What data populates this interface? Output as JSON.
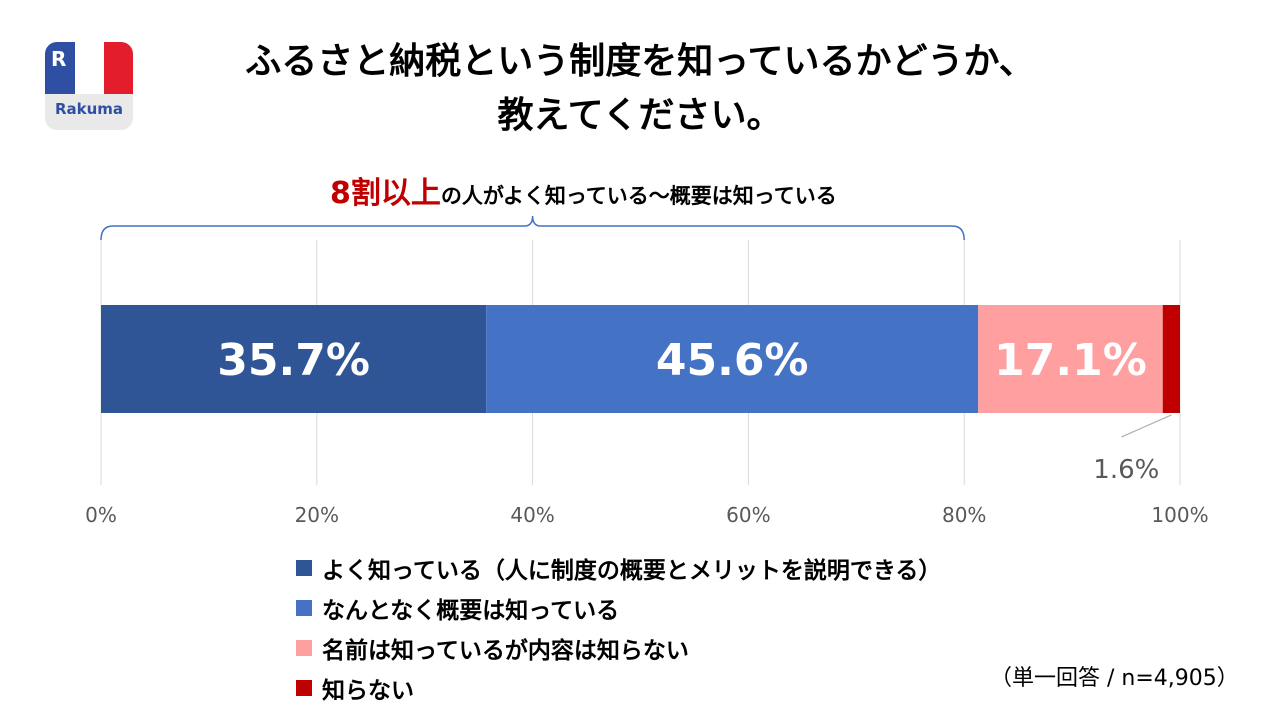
{
  "logo": {
    "text": "Rakuma",
    "mark": "R"
  },
  "title_line1": "ふるさと納税という制度を知っているかどうか、",
  "title_line2": "教えてください。",
  "highlight": {
    "emphasis": "8割以上",
    "rest": "の人がよく知っている〜概要は知っている"
  },
  "note": "（単一回答 / n=4,905）",
  "chart_data": {
    "type": "bar",
    "orientation": "horizontal-stacked-100",
    "categories": [
      "よく知っている（人に制度の概要とメリットを説明できる）",
      "なんとなく概要は知っている",
      "名前は知っているが内容は知らない",
      "知らない"
    ],
    "values": [
      35.7,
      45.6,
      17.1,
      1.6
    ],
    "value_labels": [
      "35.7%",
      "45.6%",
      "17.1%",
      "1.6%"
    ],
    "colors": [
      "#2f5597",
      "#4472c4",
      "#ff9f9f",
      "#c00000"
    ],
    "label_colors": [
      "#ffffff",
      "#ffffff",
      "#ffffff",
      "#595959"
    ],
    "xlim": [
      0,
      100
    ],
    "xticks": [
      0,
      20,
      40,
      60,
      80,
      100
    ],
    "xtick_labels": [
      "0%",
      "20%",
      "40%",
      "60%",
      "80%",
      "100%"
    ],
    "grid": true,
    "brace_range": [
      0,
      80
    ],
    "legend_position": "bottom"
  }
}
